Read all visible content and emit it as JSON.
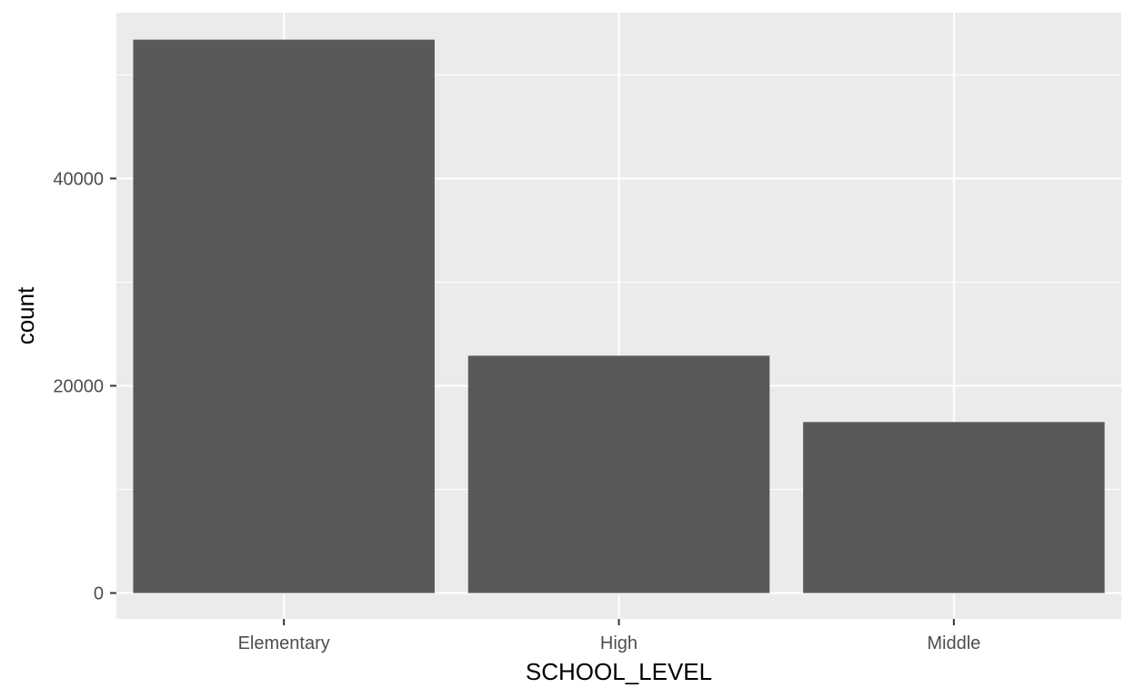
{
  "chart_data": {
    "type": "bar",
    "title": "",
    "xlabel": "SCHOOL_LEVEL",
    "ylabel": "count",
    "categories": [
      "Elementary",
      "High",
      "Middle"
    ],
    "values": [
      53400,
      22900,
      16500
    ],
    "ylim": [
      -2500,
      56000
    ],
    "yticks": [
      0,
      20000,
      40000
    ],
    "ytick_labels": [
      "0",
      "20000",
      "40000"
    ],
    "grid": true,
    "legend": "none",
    "colors": {
      "panel_background": "#ebebeb",
      "grid_line": "#ffffff",
      "bar_fill": "#595959",
      "tick_mark": "#333333"
    }
  }
}
